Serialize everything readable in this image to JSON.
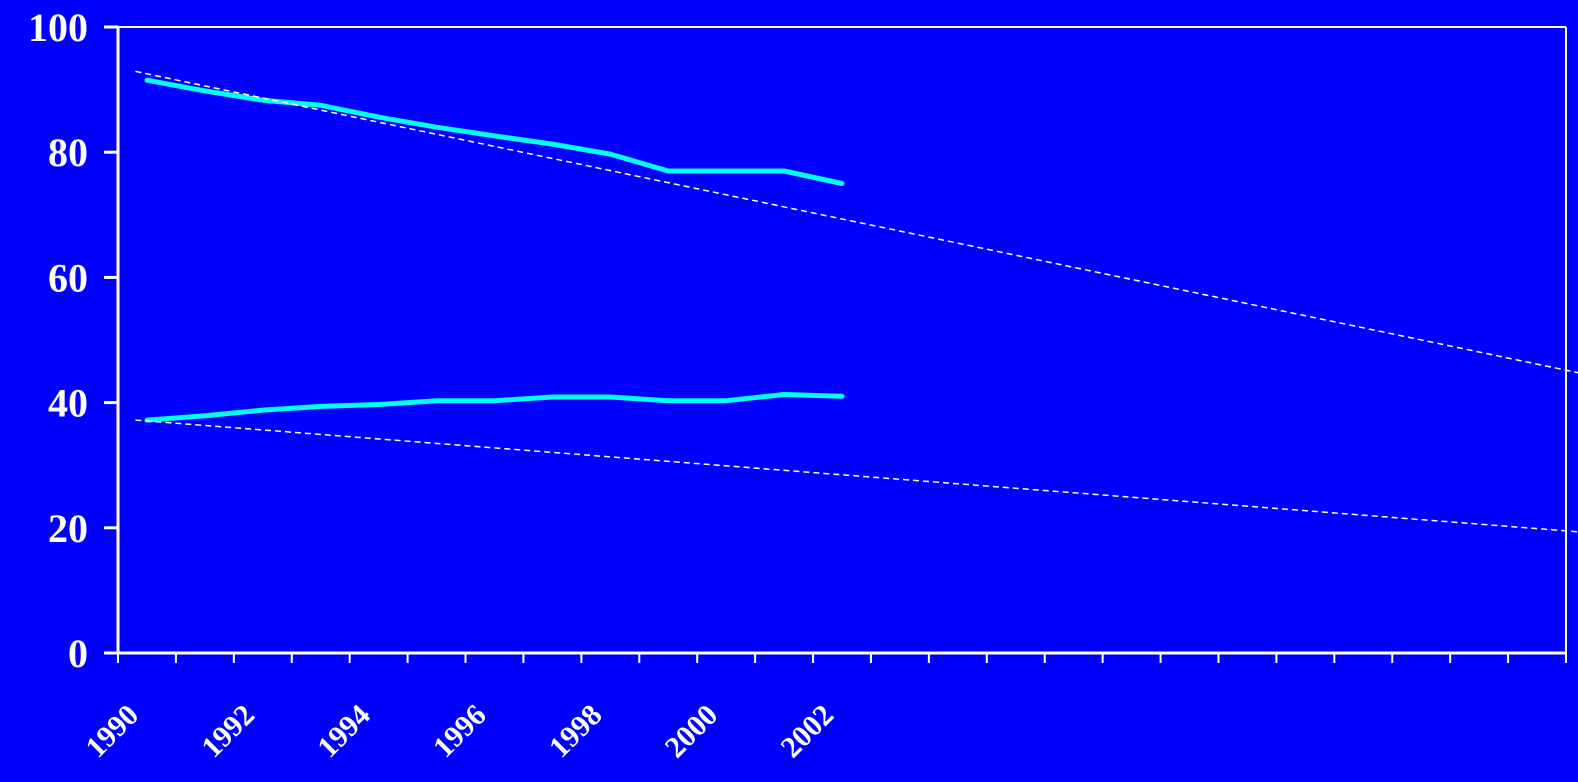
{
  "chart_data": {
    "type": "line",
    "title": "",
    "xlabel": "",
    "ylabel": "",
    "xlim": [
      1990,
      2015
    ],
    "ylim": [
      0,
      100
    ],
    "grid": false,
    "legend": "none",
    "y_ticks": [
      0,
      20,
      40,
      60,
      80,
      100
    ],
    "x_tick_labels": [
      "1990",
      "1992",
      "1994",
      "1996",
      "1998",
      "2000",
      "2002"
    ],
    "colors": {
      "background": "#0000ff",
      "axis": "#ffffff",
      "series": "#00ffff",
      "trend": "#ffffff"
    },
    "series": [
      {
        "style": "solid",
        "x": [
          1990.5,
          1991.5,
          1992.5,
          1993.5,
          1994.5,
          1995.5,
          1996.5,
          1997.5,
          1998.5,
          1999.5,
          2000.5,
          2001.5,
          2002.5
        ],
        "values": [
          91.5,
          89.8,
          88.3,
          87.5,
          85.6,
          84.0,
          82.6,
          81.3,
          79.7,
          77.0,
          77.0,
          77.0,
          75.0
        ]
      },
      {
        "style": "solid",
        "x": [
          1990.5,
          1991.5,
          1992.5,
          1993.5,
          1994.5,
          1995.5,
          1996.5,
          1997.5,
          1998.5,
          1999.5,
          2000.5,
          2001.5,
          2002.5
        ],
        "values": [
          37.2,
          37.9,
          38.8,
          39.4,
          39.7,
          40.3,
          40.3,
          40.9,
          40.9,
          40.3,
          40.3,
          41.3,
          41.0
        ]
      },
      {
        "style": "dashed",
        "x": [
          1990.3,
          2015.3
        ],
        "values": [
          92.9,
          44.6
        ]
      },
      {
        "style": "dashed",
        "x": [
          1990.3,
          2015.3
        ],
        "values": [
          37.2,
          19.3
        ]
      }
    ]
  }
}
